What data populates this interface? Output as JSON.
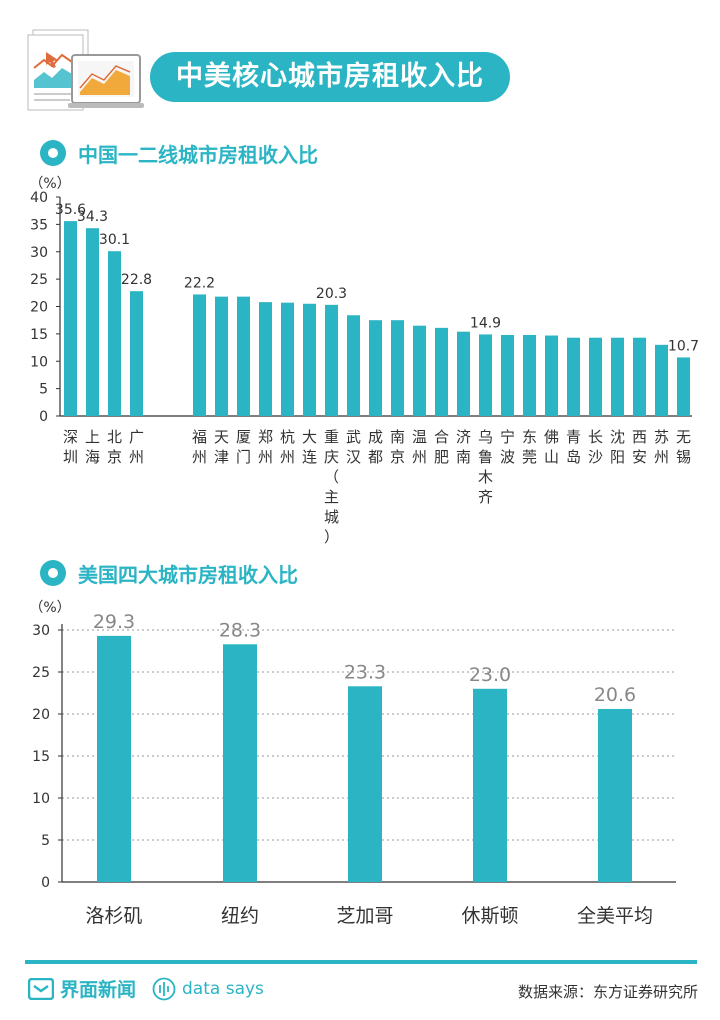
{
  "header": {
    "title": "中美核心城市房租收入比"
  },
  "sections": [
    {
      "title": "中国一二线城市房租收入比"
    },
    {
      "title": "美国四大城市房租收入比"
    }
  ],
  "chart_data": [
    {
      "type": "bar",
      "title": "中国一二线城市房租收入比",
      "ylabel": "（%）",
      "ylim": [
        0,
        40
      ],
      "yticks": [
        0,
        5,
        10,
        15,
        20,
        25,
        30,
        35,
        40
      ],
      "grid": false,
      "groups": [
        {
          "categories": [
            "深圳",
            "上海",
            "北京",
            "广州"
          ],
          "values": [
            35.6,
            34.3,
            30.1,
            22.8
          ],
          "labels": [
            "35.6",
            "34.3",
            "30.1",
            "22.8"
          ]
        },
        {
          "categories": [
            "福州",
            "天津",
            "厦门",
            "郑州",
            "杭州",
            "大连",
            "重庆（主城）",
            "武汉",
            "成都",
            "南京",
            "温州",
            "合肥",
            "济南",
            "乌鲁木齐",
            "宁波",
            "东莞",
            "佛山",
            "青岛",
            "长沙",
            "沈阳",
            "西安",
            "苏州",
            "无锡"
          ],
          "values": [
            22.2,
            21.8,
            21.8,
            20.8,
            20.7,
            20.5,
            20.3,
            18.4,
            17.5,
            17.5,
            16.5,
            16.1,
            15.4,
            14.9,
            14.8,
            14.8,
            14.7,
            14.3,
            14.3,
            14.3,
            14.3,
            13.0,
            10.7
          ],
          "labels": [
            "22.2",
            "",
            "",
            "",
            "",
            "",
            "20.3",
            "",
            "",
            "",
            "",
            "",
            "",
            "14.9",
            "",
            "",
            "",
            "",
            "",
            "",
            "",
            "",
            "10.7"
          ]
        }
      ]
    },
    {
      "type": "bar",
      "title": "美国四大城市房租收入比",
      "ylabel": "（%）",
      "ylim": [
        0,
        30
      ],
      "yticks": [
        0,
        5,
        10,
        15,
        20,
        25,
        30
      ],
      "grid": true,
      "categories": [
        "洛杉矶",
        "纽约",
        "芝加哥",
        "休斯顿",
        "全美平均"
      ],
      "values": [
        29.3,
        28.3,
        23.3,
        23.0,
        20.6
      ],
      "labels": [
        "29.3",
        "28.3",
        "23.3",
        "23.0",
        "20.6"
      ]
    }
  ],
  "colors": {
    "accent": "#2bb5c4",
    "axis": "#333333",
    "grid": "#999999",
    "label_dark": "#333333",
    "label_grey": "#888888"
  },
  "icons": {
    "header": "report-laptop-icon",
    "brand": "jiemian-logo-icon",
    "datasays": "data-says-icon"
  },
  "footer": {
    "brand": "界面新闻",
    "sub": "data says",
    "source": "数据来源：东方证券研究所"
  }
}
